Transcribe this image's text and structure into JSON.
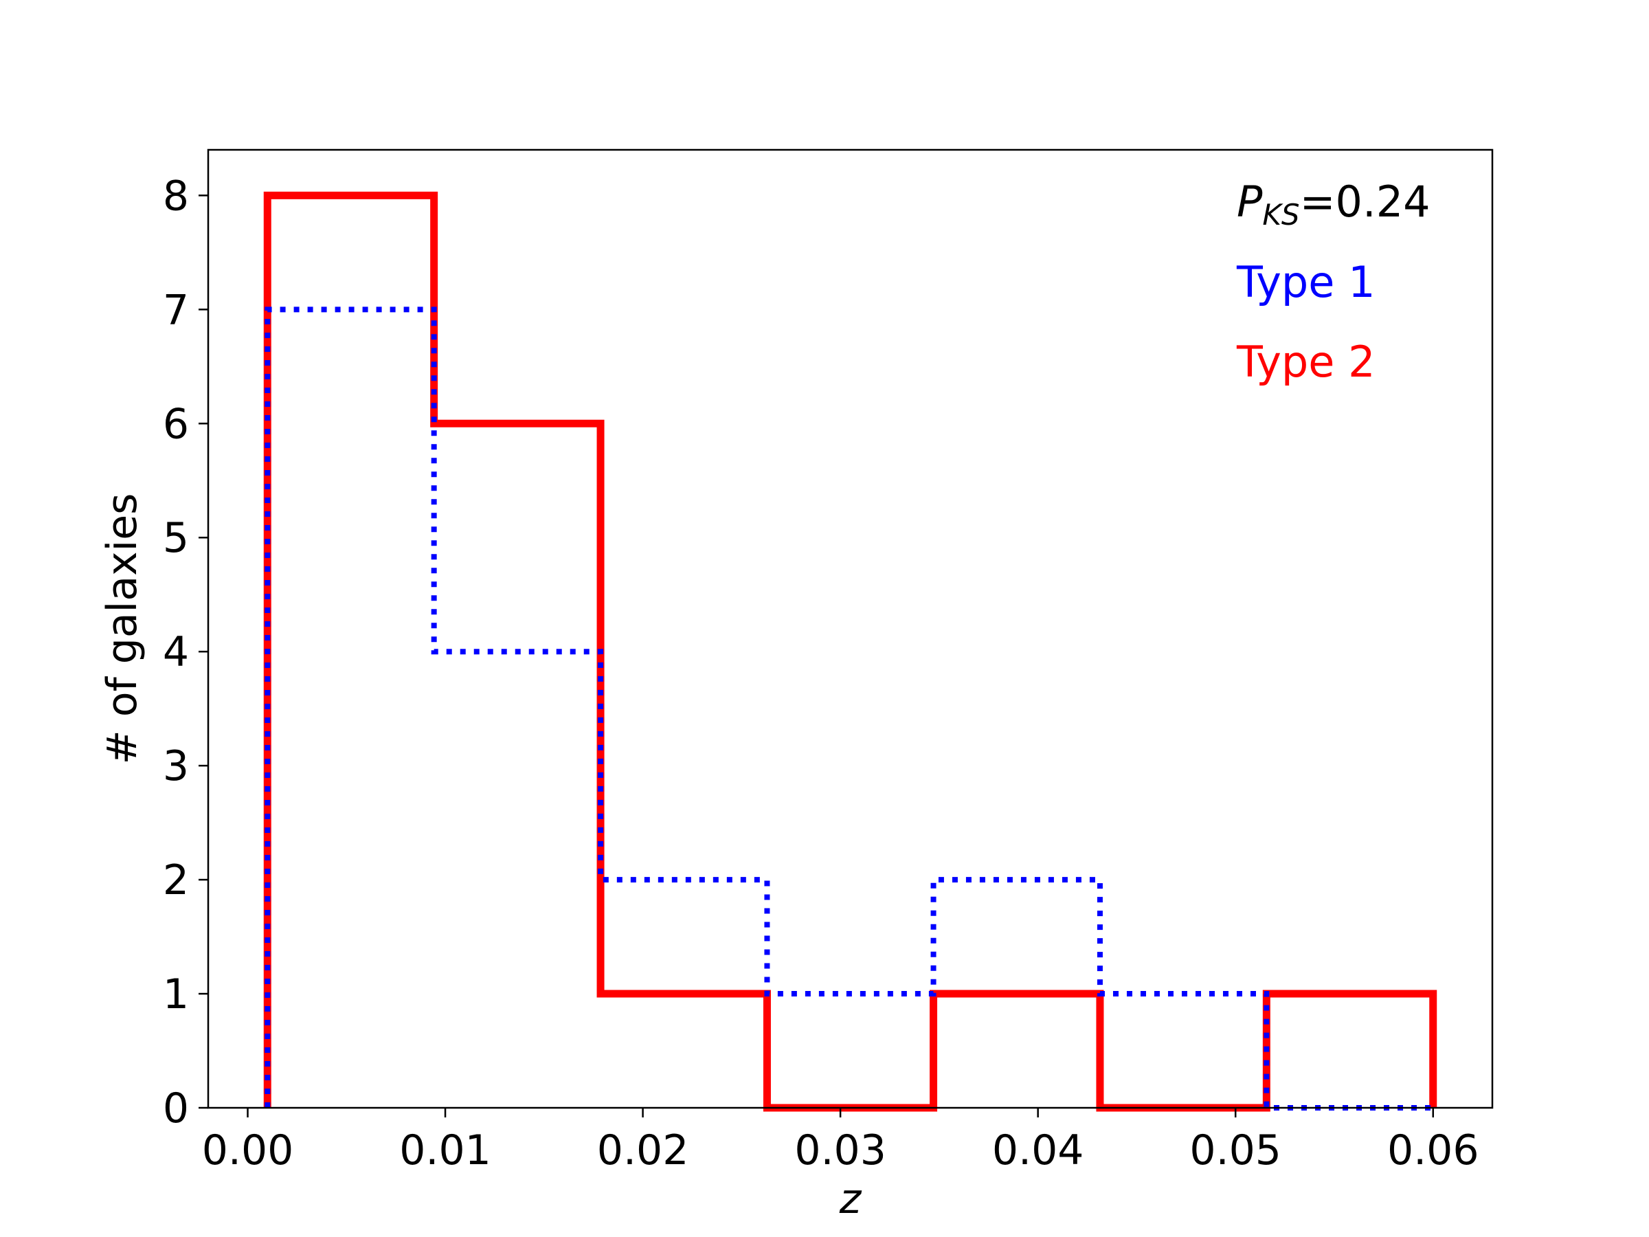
{
  "chart_data": {
    "type": "histogram-step",
    "title": "",
    "xlabel": "z",
    "ylabel": "# of galaxies",
    "xlim": [
      -0.002,
      0.063
    ],
    "ylim": [
      0,
      8.4
    ],
    "xticks": [
      0.0,
      0.01,
      0.02,
      0.03,
      0.04,
      0.05,
      0.06
    ],
    "xtick_labels": [
      "0.00",
      "0.01",
      "0.02",
      "0.03",
      "0.04",
      "0.05",
      "0.06"
    ],
    "yticks": [
      0,
      1,
      2,
      3,
      4,
      5,
      6,
      7,
      8
    ],
    "ytick_labels": [
      "0",
      "1",
      "2",
      "3",
      "4",
      "5",
      "6",
      "7",
      "8"
    ],
    "bin_edges": [
      0.001,
      0.00943,
      0.01786,
      0.02629,
      0.03471,
      0.04314,
      0.05157,
      0.06
    ],
    "series": [
      {
        "name": "Type 1",
        "color": "#0000ff",
        "linestyle": "dotted",
        "values": [
          7,
          4,
          2,
          1,
          2,
          1,
          0
        ]
      },
      {
        "name": "Type 2",
        "color": "#ff0000",
        "linestyle": "solid",
        "values": [
          8,
          6,
          1,
          0,
          1,
          0,
          1
        ]
      }
    ],
    "annotations": {
      "pks_symbol": "P",
      "pks_subscript": "KS",
      "pks_value": "=0.24",
      "type1_label": "Type 1",
      "type2_label": "Type 2"
    },
    "grid": false
  }
}
